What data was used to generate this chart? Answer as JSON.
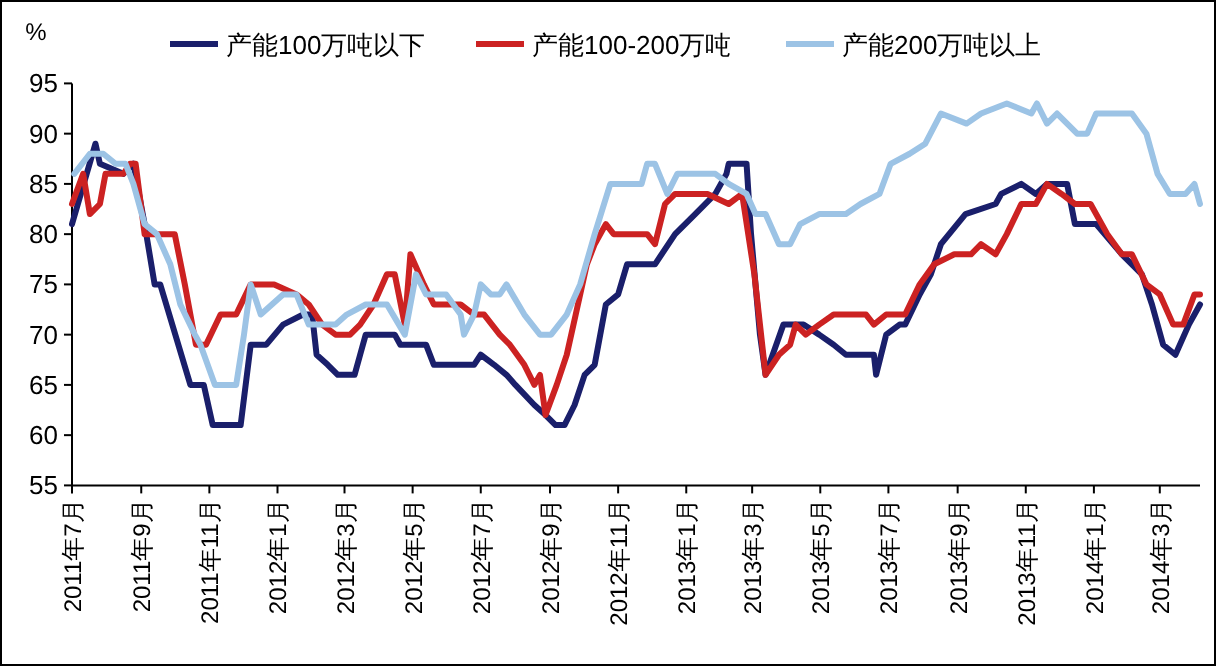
{
  "chart_data": {
    "type": "line",
    "ylabel": "%",
    "legend": "top",
    "xlim": [
      "2011-07-01",
      "2014-04-06"
    ],
    "xticks": [
      {
        "value": "2011-07-01",
        "label": "2011年7月"
      },
      {
        "value": "2011-09-01",
        "label": "2011年9月"
      },
      {
        "value": "2011-11-01",
        "label": "2011年11月"
      },
      {
        "value": "2012-01-01",
        "label": "2012年1月"
      },
      {
        "value": "2012-03-01",
        "label": "2012年3月"
      },
      {
        "value": "2012-05-01",
        "label": "2012年5月"
      },
      {
        "value": "2012-07-01",
        "label": "2012年7月"
      },
      {
        "value": "2012-09-01",
        "label": "2012年9月"
      },
      {
        "value": "2012-11-01",
        "label": "2012年11月"
      },
      {
        "value": "2013-01-01",
        "label": "2013年1月"
      },
      {
        "value": "2013-03-01",
        "label": "2013年3月"
      },
      {
        "value": "2013-05-01",
        "label": "2013年5月"
      },
      {
        "value": "2013-07-01",
        "label": "2013年7月"
      },
      {
        "value": "2013-09-01",
        "label": "2013年9月"
      },
      {
        "value": "2013-11-01",
        "label": "2013年11月"
      },
      {
        "value": "2014-01-01",
        "label": "2014年1月"
      },
      {
        "value": "2014-03-01",
        "label": "2014年3月"
      }
    ],
    "ylim": [
      55,
      95
    ],
    "yticks": [
      55,
      60,
      65,
      70,
      75,
      80,
      85,
      90,
      95
    ],
    "series": [
      {
        "name": "产能100万吨以下",
        "color": "#1a1f6b",
        "x": [
          "2011-07-01",
          "2011-07-22",
          "2011-07-26",
          "2011-08-16",
          "2011-08-25",
          "2011-09-04",
          "2011-09-13",
          "2011-09-18",
          "2011-10-15",
          "2011-10-27",
          "2011-11-04",
          "2011-11-29",
          "2011-12-08",
          "2011-12-22",
          "2012-01-06",
          "2012-01-24",
          "2012-02-01",
          "2012-02-05",
          "2012-02-15",
          "2012-02-24",
          "2012-03-10",
          "2012-03-15",
          "2012-03-20",
          "2012-04-15",
          "2012-04-20",
          "2012-05-13",
          "2012-05-20",
          "2012-06-25",
          "2012-07-01",
          "2012-07-13",
          "2012-07-24",
          "2012-08-01",
          "2012-08-18",
          "2012-08-28",
          "2012-09-06",
          "2012-09-14",
          "2012-09-23",
          "2012-10-02",
          "2012-10-11",
          "2012-10-21",
          "2012-11-01",
          "2012-11-09",
          "2012-11-22",
          "2012-12-04",
          "2012-12-22",
          "2013-01-09",
          "2013-01-27",
          "2013-02-06",
          "2013-02-08",
          "2013-02-24",
          "2013-02-28",
          "2013-03-08",
          "2013-03-13",
          "2013-03-29",
          "2013-04-16",
          "2013-04-30",
          "2013-05-13",
          "2013-05-24",
          "2013-06-18",
          "2013-06-20",
          "2013-06-29",
          "2013-07-11",
          "2013-07-16",
          "2013-07-29",
          "2013-08-08",
          "2013-08-17",
          "2013-09-08",
          "2013-10-05",
          "2013-10-10",
          "2013-10-28",
          "2013-11-10",
          "2013-11-20",
          "2013-12-08",
          "2013-12-15",
          "2014-01-03",
          "2014-01-26",
          "2014-02-13",
          "2014-02-22",
          "2014-03-04",
          "2014-03-15",
          "2014-03-27",
          "2014-04-06"
        ],
        "values": [
          81,
          89,
          87,
          86,
          87,
          81,
          75,
          75,
          65,
          65,
          61,
          61,
          69,
          69,
          71,
          72,
          72,
          68,
          67,
          66,
          66,
          68,
          70,
          70,
          69,
          69,
          67,
          67,
          68,
          67,
          66,
          65,
          63,
          62,
          61,
          61,
          63,
          66,
          67,
          73,
          74,
          77,
          77,
          77,
          80,
          82,
          84,
          86,
          87,
          87,
          80,
          70,
          66,
          71,
          71,
          70,
          69,
          68,
          68,
          66,
          70,
          71,
          71,
          74,
          76,
          79,
          82,
          83,
          84,
          85,
          84,
          85,
          85,
          81,
          81,
          78,
          76,
          73,
          69,
          68,
          71,
          73
        ]
      },
      {
        "name": "产能100-200万吨",
        "color": "#cc2222",
        "x": [
          "2011-07-01",
          "2011-07-11",
          "2011-07-17",
          "2011-07-26",
          "2011-07-31",
          "2011-08-16",
          "2011-08-22",
          "2011-08-27",
          "2011-09-04",
          "2011-10-01",
          "2011-10-10",
          "2011-10-20",
          "2011-10-29",
          "2011-11-11",
          "2011-11-25",
          "2011-12-08",
          "2011-12-29",
          "2012-01-18",
          "2012-01-29",
          "2012-02-10",
          "2012-02-22",
          "2012-03-06",
          "2012-03-15",
          "2012-03-27",
          "2012-04-08",
          "2012-04-15",
          "2012-04-24",
          "2012-04-29",
          "2012-05-11",
          "2012-05-20",
          "2012-06-13",
          "2012-06-25",
          "2012-07-04",
          "2012-07-18",
          "2012-07-27",
          "2012-08-09",
          "2012-08-18",
          "2012-08-23",
          "2012-08-28",
          "2012-09-07",
          "2012-09-16",
          "2012-09-24",
          "2012-10-04",
          "2012-10-11",
          "2012-10-21",
          "2012-10-28",
          "2012-11-27",
          "2012-12-04",
          "2012-12-13",
          "2012-12-22",
          "2013-01-20",
          "2013-02-08",
          "2013-02-20",
          "2013-03-03",
          "2013-03-13",
          "2013-03-25",
          "2013-04-04",
          "2013-04-09",
          "2013-04-18",
          "2013-04-30",
          "2013-05-13",
          "2013-06-11",
          "2013-06-18",
          "2013-06-29",
          "2013-07-16",
          "2013-07-29",
          "2013-08-11",
          "2013-08-29",
          "2013-09-13",
          "2013-09-22",
          "2013-10-05",
          "2013-10-15",
          "2013-10-28",
          "2013-11-10",
          "2013-11-20",
          "2013-12-03",
          "2013-12-15",
          "2013-12-29",
          "2014-01-13",
          "2014-01-26",
          "2014-02-04",
          "2014-02-17",
          "2014-03-01",
          "2014-03-13",
          "2014-03-22",
          "2014-04-01",
          "2014-04-06"
        ],
        "values": [
          83,
          86,
          82,
          83,
          86,
          86,
          87,
          87,
          80,
          80,
          75,
          69,
          69,
          72,
          72,
          75,
          75,
          74,
          73,
          71,
          70,
          70,
          71,
          73,
          76,
          76,
          71,
          78,
          75,
          73,
          73,
          72,
          72,
          70,
          69,
          67,
          65,
          66,
          62,
          65,
          68,
          72,
          77,
          79,
          81,
          80,
          80,
          79,
          83,
          84,
          84,
          83,
          84,
          76,
          66,
          68,
          69,
          71,
          70,
          71,
          72,
          72,
          71,
          72,
          72,
          75,
          77,
          78,
          78,
          79,
          78,
          80,
          83,
          83,
          85,
          84,
          83,
          83,
          80,
          78,
          78,
          75,
          74,
          71,
          71,
          74,
          74
        ]
      },
      {
        "name": "产能200万吨以上",
        "color": "#9cc3e5",
        "x": [
          "2011-07-03",
          "2011-07-17",
          "2011-07-29",
          "2011-08-09",
          "2011-08-18",
          "2011-08-25",
          "2011-09-04",
          "2011-09-15",
          "2011-09-27",
          "2011-10-06",
          "2011-10-19",
          "2011-10-24",
          "2011-11-06",
          "2011-11-25",
          "2011-12-02",
          "2011-12-08",
          "2011-12-17",
          "2012-01-06",
          "2012-01-18",
          "2012-01-29",
          "2012-02-22",
          "2012-03-03",
          "2012-03-20",
          "2012-04-08",
          "2012-04-24",
          "2012-05-04",
          "2012-05-13",
          "2012-05-31",
          "2012-06-13",
          "2012-06-16",
          "2012-06-25",
          "2012-07-01",
          "2012-07-10",
          "2012-07-18",
          "2012-07-24",
          "2012-08-09",
          "2012-08-23",
          "2012-09-02",
          "2012-09-16",
          "2012-09-28",
          "2012-10-11",
          "2012-10-25",
          "2012-11-22",
          "2012-11-27",
          "2012-12-04",
          "2012-12-15",
          "2012-12-24",
          "2013-01-27",
          "2013-02-08",
          "2013-02-24",
          "2013-03-04",
          "2013-03-13",
          "2013-03-25",
          "2013-04-04",
          "2013-04-13",
          "2013-04-30",
          "2013-05-24",
          "2013-06-06",
          "2013-06-23",
          "2013-07-03",
          "2013-07-20",
          "2013-08-03",
          "2013-08-17",
          "2013-09-09",
          "2013-09-22",
          "2013-10-15",
          "2013-11-06",
          "2013-11-11",
          "2013-11-20",
          "2013-11-29",
          "2013-12-17",
          "2013-12-26",
          "2014-01-03",
          "2014-02-04",
          "2014-02-17",
          "2014-02-27",
          "2014-03-10",
          "2014-03-24",
          "2014-04-01",
          "2014-04-06"
        ],
        "values": [
          86,
          88,
          88,
          87,
          87,
          85,
          81,
          80,
          77,
          73,
          70,
          69,
          65,
          65,
          70,
          75,
          72,
          74,
          74,
          71,
          71,
          72,
          73,
          73,
          70,
          76,
          74,
          74,
          72,
          70,
          72,
          75,
          74,
          74,
          75,
          72,
          70,
          70,
          72,
          75,
          80,
          85,
          85,
          87,
          87,
          84,
          86,
          86,
          85,
          84,
          82,
          82,
          79,
          79,
          81,
          82,
          82,
          83,
          84,
          87,
          88,
          89,
          92,
          91,
          92,
          93,
          92,
          93,
          91,
          92,
          90,
          90,
          92,
          92,
          90,
          86,
          84,
          84,
          85,
          83
        ]
      }
    ]
  }
}
